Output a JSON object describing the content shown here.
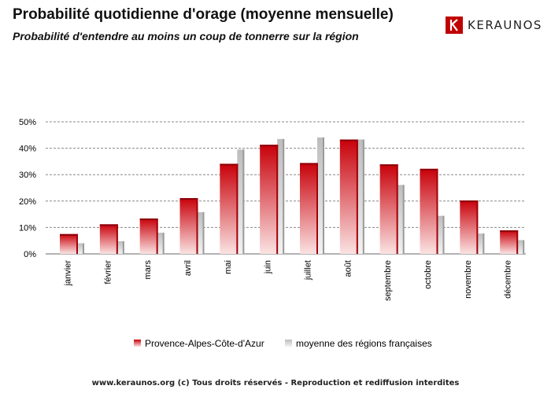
{
  "title": "Probabilité quotidienne d'orage (moyenne mensuelle)",
  "subtitle": "Probabilité d'entendre au moins un coup de tonnerre sur la région",
  "logo": {
    "text": "KERAUNOS"
  },
  "footer": "www.keraunos.org  (c) Tous droits réservés - Reproduction et rediffusion interdites",
  "colors": {
    "series1": "#c8000a",
    "series1_light": "#fbe3e3",
    "series2": "#bdbdbd",
    "series2_light": "#ededed",
    "grid": "#888888",
    "logo": "#c00000"
  },
  "chart_data": {
    "type": "bar",
    "categories": [
      "janvier",
      "février",
      "mars",
      "avril",
      "mai",
      "juin",
      "juillet",
      "août",
      "septembre",
      "octobre",
      "novembre",
      "décembre"
    ],
    "series": [
      {
        "name": "Provence-Alpes-Côte-d'Azur",
        "values": [
          7.5,
          11.2,
          13.4,
          21.1,
          34.1,
          41.3,
          34.4,
          43.3,
          33.9,
          32.2,
          20.2,
          8.9
        ]
      },
      {
        "name": "moyenne des régions françaises",
        "values": [
          4.0,
          4.8,
          8.0,
          15.8,
          39.5,
          43.5,
          44.1,
          43.3,
          26.1,
          14.4,
          7.7,
          5.2
        ]
      }
    ],
    "yticks": [
      "0%",
      "10%",
      "20%",
      "30%",
      "40%",
      "50%"
    ],
    "ylim": [
      0,
      50
    ],
    "grid": true,
    "legend": "bottom"
  }
}
